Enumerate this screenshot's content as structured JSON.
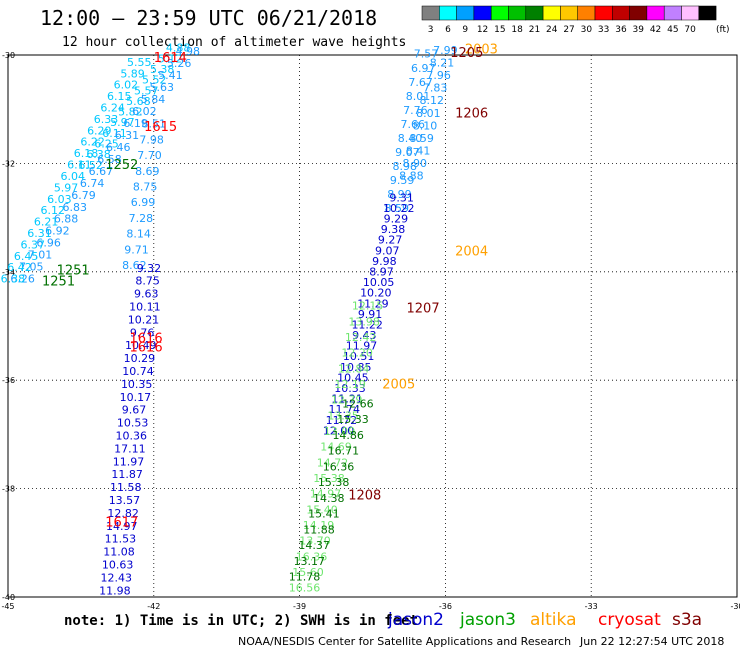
{
  "header": {
    "title": "12:00 – 23:59 UTC 06/21/2018",
    "subtitle": "12 hour collection of altimeter wave heights"
  },
  "legend": {
    "unit": "(ft)",
    "bins": [
      {
        "label": "3",
        "color": "#808080"
      },
      {
        "label": "6",
        "color": "#00ffff"
      },
      {
        "label": "9",
        "color": "#00a0ff"
      },
      {
        "label": "12",
        "color": "#0000ff"
      },
      {
        "label": "15",
        "color": "#00ff00"
      },
      {
        "label": "18",
        "color": "#00c000"
      },
      {
        "label": "21",
        "color": "#008000"
      },
      {
        "label": "24",
        "color": "#ffff00"
      },
      {
        "label": "27",
        "color": "#ffc800"
      },
      {
        "label": "30",
        "color": "#ff8000"
      },
      {
        "label": "33",
        "color": "#ff0000"
      },
      {
        "label": "36",
        "color": "#c00000"
      },
      {
        "label": "39",
        "color": "#800000"
      },
      {
        "label": "42",
        "color": "#ff00ff"
      },
      {
        "label": "45",
        "color": "#c080ff"
      },
      {
        "label": "70",
        "color": "#ffc0ff"
      },
      {
        "label": "",
        "color": "#000000"
      }
    ]
  },
  "map": {
    "lon_range": [
      -45,
      -30
    ],
    "lat_range": [
      -40,
      -30
    ],
    "lon_ticks": [
      "-45",
      "-42",
      "-39",
      "-36",
      "-33",
      "-30"
    ],
    "lat_ticks": [
      "-30",
      "-32",
      "-34",
      "-36",
      "-38",
      "-40"
    ],
    "grid": "dotted"
  },
  "colors": {
    "cyan": "#00c8ff",
    "lightblue": "#1e9bff",
    "blue": "#0000cd",
    "lightgreen": "#6fe66f",
    "green": "#00a000",
    "darkgreen": "#007000",
    "orange": "#ffa000",
    "red": "#ff0000",
    "darkred": "#800000"
  },
  "track_labels": [
    {
      "text": "1614",
      "lon": -42.0,
      "lat": -30.13,
      "color": "red"
    },
    {
      "text": "1615",
      "lon": -42.2,
      "lat": -31.4,
      "color": "red"
    },
    {
      "text": "1252",
      "lon": -43.0,
      "lat": -32.1,
      "color": "darkgreen"
    },
    {
      "text": "1251",
      "lon": -44.0,
      "lat": -34.05,
      "color": "darkgreen"
    },
    {
      "text": "1251",
      "lon": -44.3,
      "lat": -34.25,
      "color": "darkgreen"
    },
    {
      "text": "1616",
      "lon": -42.5,
      "lat": -35.3,
      "color": "red"
    },
    {
      "text": "1616",
      "lon": -42.5,
      "lat": -35.47,
      "color": "red"
    },
    {
      "text": "1617",
      "lon": -43.0,
      "lat": -38.7,
      "color": "red"
    },
    {
      "text": "2003",
      "lon": -35.6,
      "lat": -29.97,
      "color": "orange"
    },
    {
      "text": "1205",
      "lon": -35.9,
      "lat": -30.04,
      "color": "darkred"
    },
    {
      "text": "1206",
      "lon": -35.8,
      "lat": -31.15,
      "color": "darkred"
    },
    {
      "text": "2004",
      "lon": -35.8,
      "lat": -33.7,
      "color": "orange"
    },
    {
      "text": "1207",
      "lon": -36.8,
      "lat": -34.75,
      "color": "darkred"
    },
    {
      "text": "2005",
      "lon": -37.3,
      "lat": -36.15,
      "color": "orange"
    },
    {
      "text": "1208",
      "lon": -38.0,
      "lat": -38.2,
      "color": "darkred"
    }
  ],
  "tracks": [
    {
      "name": "pass-cyan-left",
      "color": "cyan",
      "start": [
        -41.5,
        -29.94
      ],
      "end": [
        -43.3,
        -32.1
      ],
      "values": [
        "4.88",
        "5.12",
        "5.38",
        "5.52",
        "5.57",
        "5.68",
        "5.82",
        "5.97",
        "6.11",
        "6.25",
        "6.38",
        "6.52"
      ]
    },
    {
      "name": "pass-cyan-right",
      "color": "lightblue",
      "start": [
        -41.3,
        -30.0
      ],
      "end": [
        -44.7,
        -34.2
      ],
      "values": [
        "4.98",
        "5.26",
        "5.41",
        "5.63",
        "5.84",
        "6.02",
        "6.19",
        "6.31",
        "6.46",
        "6.58",
        "6.67",
        "6.74",
        "6.79",
        "6.83",
        "6.88",
        "6.92",
        "6.96",
        "7.01",
        "7.05",
        "6.26"
      ]
    },
    {
      "name": "pass-cyan-mid",
      "color": "cyan",
      "start": [
        -42.3,
        -30.2
      ],
      "end": [
        -44.9,
        -34.2
      ],
      "values": [
        "5.55",
        "5.89",
        "6.02",
        "6.15",
        "6.24",
        "6.33",
        "6.29",
        "6.22",
        "6.18",
        "6.11",
        "6.04",
        "5.97",
        "6.03",
        "6.12",
        "6.21",
        "6.31",
        "6.37",
        "6.45",
        "6.42",
        "6.38"
      ]
    },
    {
      "name": "pass-lightblue-tail",
      "color": "lightblue",
      "start": [
        -42.0,
        -31.34
      ],
      "end": [
        -42.4,
        -33.95
      ],
      "values": [
        "8.51",
        "7.98",
        "7.70",
        "8.69",
        "8.75",
        "6.99",
        "7.28",
        "8.14",
        "9.71",
        "8.62"
      ]
    },
    {
      "name": "pass-blue-left",
      "color": "blue",
      "start": [
        -42.1,
        -34.0
      ],
      "end": [
        -42.8,
        -39.95
      ],
      "values": [
        "9.32",
        "8.75",
        "9.63",
        "10.11",
        "10.21",
        "9.76",
        "10.49",
        "10.29",
        "10.74",
        "10.35",
        "10.17",
        "9.67",
        "10.53",
        "10.36",
        "17.11",
        "11.97",
        "11.87",
        "11.58",
        "13.57",
        "12.82",
        "14.97",
        "11.53",
        "11.08",
        "10.63",
        "12.43",
        "11.98"
      ]
    },
    {
      "name": "pass-right-north",
      "color": "lightblue",
      "start": [
        -36.4,
        -30.05
      ],
      "end": [
        -37.0,
        -32.9
      ],
      "values": [
        "7.57",
        "6.97",
        "7.67",
        "8.01",
        "7.76",
        "7.66",
        "8.40",
        "9.07",
        "8.98",
        "9.59",
        "8.99",
        "8.59"
      ]
    },
    {
      "name": "pass-right-north-2",
      "color": "lightblue",
      "start": [
        -36.0,
        -29.98
      ],
      "end": [
        -36.7,
        -32.3
      ],
      "values": [
        "7.99",
        "8.21",
        "7.96",
        "7.83",
        "8.12",
        "8.01",
        "8.10",
        "8.59",
        "8.41",
        "8.90",
        "8.88"
      ]
    },
    {
      "name": "pass-right-blue",
      "color": "blue",
      "start": [
        -36.9,
        -32.7
      ],
      "end": [
        -38.2,
        -37.0
      ],
      "values": [
        "9.31",
        "10.22",
        "9.29",
        "9.38",
        "9.27",
        "9.07",
        "9.98",
        "8.97",
        "10.05",
        "10.20",
        "11.29",
        "9.91",
        "11.22",
        "9.43",
        "11.97",
        "10.51",
        "10.85",
        "10.45",
        "10.33",
        "11.21",
        "11.74",
        "11.72",
        "12.00"
      ]
    },
    {
      "name": "pass-right-green",
      "color": "lightgreen",
      "start": [
        -37.6,
        -34.7
      ],
      "end": [
        -38.9,
        -39.9
      ],
      "values": [
        "12.15",
        "13.98",
        "12.42",
        "12.20",
        "12.84",
        "12.19",
        "12.79",
        "13.35",
        "13.09",
        "14.69",
        "14.72",
        "15.38",
        "14.97",
        "15.40",
        "14.19",
        "13.70",
        "16.36",
        "15.60",
        "16.56"
      ]
    },
    {
      "name": "pass-right-mix",
      "color": "darkgreen",
      "start": [
        -37.8,
        -36.5
      ],
      "end": [
        -38.9,
        -39.7
      ],
      "values": [
        "12.66",
        "15.33",
        "14.86",
        "16.71",
        "16.36",
        "15.38",
        "14.38",
        "15.41",
        "11.88",
        "14.37",
        "13.17",
        "11.78"
      ]
    }
  ],
  "footer": {
    "note": "note:  1) Time is in UTC;  2) SWH is in feet",
    "legend_items": [
      {
        "text": "jason2",
        "color": "#0000cd"
      },
      {
        "text": "jason3",
        "color": "#00a000"
      },
      {
        "text": "altika",
        "color": "#ffa000"
      },
      {
        "text": "cryosat",
        "color": "#ff0000"
      },
      {
        "text": "s3a",
        "color": "#800000"
      }
    ],
    "credit": "NOAA/NESDIS Center for Satellite Applications and Research",
    "timestamp": "Jun 22 12:27:54 UTC 2018"
  }
}
